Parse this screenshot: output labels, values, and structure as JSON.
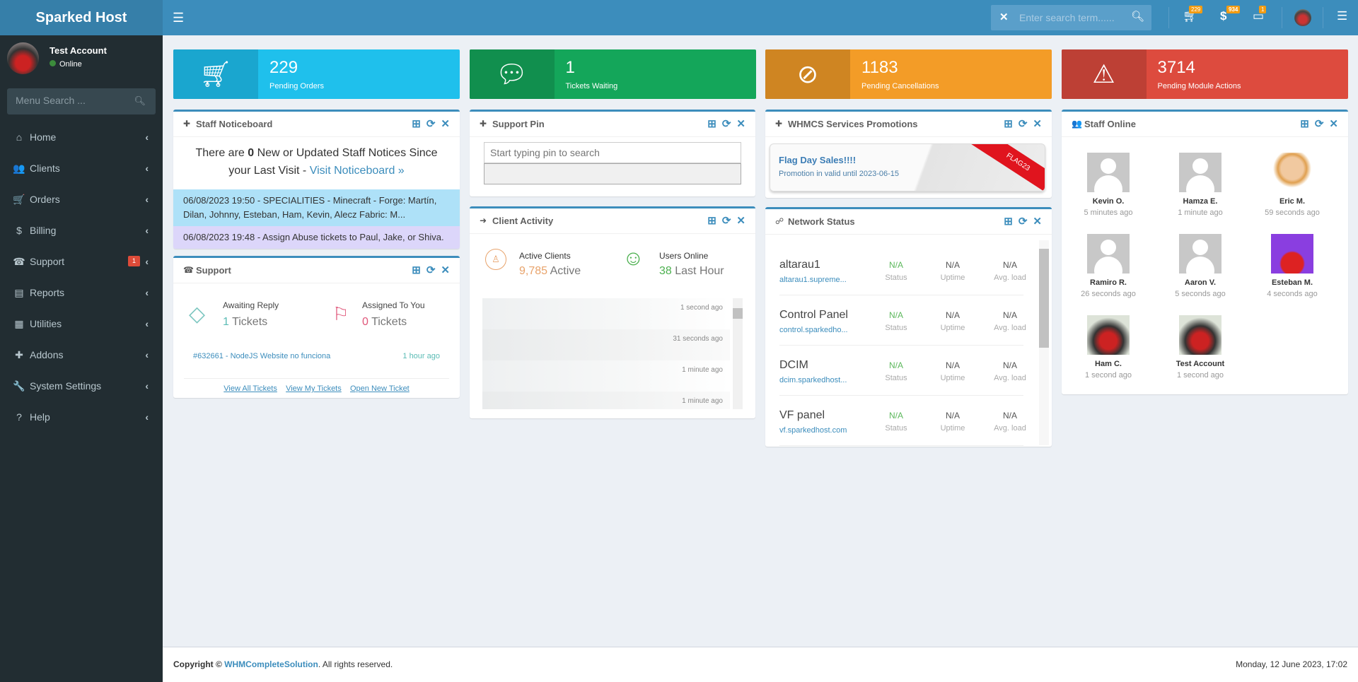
{
  "app": {
    "title": "Sparked Host"
  },
  "topbar": {
    "search_placeholder": "Enter search term......",
    "badges": {
      "orders": "229",
      "billing": "934",
      "tickets": "1"
    }
  },
  "user": {
    "name": "Test Account",
    "status": "Online"
  },
  "sidebar": {
    "search_placeholder": "Menu Search ...",
    "items": [
      {
        "label": "Home",
        "icon": "home-icon",
        "glyph": "⌂"
      },
      {
        "label": "Clients",
        "icon": "users-icon",
        "glyph": "👥"
      },
      {
        "label": "Orders",
        "icon": "cart-icon",
        "glyph": "🛒"
      },
      {
        "label": "Billing",
        "icon": "dollar-icon",
        "glyph": "$"
      },
      {
        "label": "Support",
        "icon": "support-icon",
        "glyph": "☎",
        "badge": "1"
      },
      {
        "label": "Reports",
        "icon": "file-icon",
        "glyph": "▤"
      },
      {
        "label": "Utilities",
        "icon": "grid-icon",
        "glyph": "▦"
      },
      {
        "label": "Addons",
        "icon": "puzzle-icon",
        "glyph": "✚"
      },
      {
        "label": "System Settings",
        "icon": "wrench-icon",
        "glyph": "🔧"
      },
      {
        "label": "Help",
        "icon": "help-icon",
        "glyph": "?"
      }
    ]
  },
  "stats": [
    {
      "value": "229",
      "label": "Pending Orders",
      "color": "#1fc0ec",
      "dark": "#1aa6cf",
      "icon": "cart-icon"
    },
    {
      "value": "1",
      "label": "Tickets Waiting",
      "color": "#14a65a",
      "dark": "#118f4e",
      "icon": "comment-icon"
    },
    {
      "value": "1183",
      "label": "Pending Cancellations",
      "color": "#f39c27",
      "dark": "#cf8522",
      "icon": "ban-icon"
    },
    {
      "value": "3714",
      "label": "Pending Module Actions",
      "color": "#dd4b3e",
      "dark": "#bd4035",
      "icon": "warning-icon"
    }
  ],
  "noticeboard": {
    "title": "Staff Noticeboard",
    "pre": "There are ",
    "count": "0",
    "post": " New or Updated Staff Notices Since your Last Visit - ",
    "link": "Visit Noticeboard »",
    "items": [
      "06/08/2023 19:50 - SPECIALITIES - Minecraft - Forge: Martín, Dilan, Johnny, Esteban, Ham, Kevin, Alecz Fabric: M...",
      "06/08/2023 19:48 - Assign Abuse tickets to Paul, Jake, or Shiva."
    ]
  },
  "support": {
    "title": "Support",
    "awaiting_label": "Awaiting Reply",
    "awaiting_value": "1",
    "assigned_label": "Assigned To You",
    "assigned_value": "0",
    "tickets_word": "Tickets",
    "ticket": {
      "text": "#632661 - NodeJS Website no funciona",
      "time": "1 hour ago"
    },
    "links": [
      "View All Tickets",
      "View My Tickets",
      "Open New Ticket"
    ]
  },
  "support_pin": {
    "title": "Support Pin",
    "placeholder": "Start typing pin to search"
  },
  "client_activity": {
    "title": "Client Activity",
    "active_label": "Active Clients",
    "active_value": "9,785",
    "active_word": "Active",
    "online_label": "Users Online",
    "online_value": "38",
    "online_word": "Last Hour",
    "times": [
      "1 second ago",
      "31 seconds ago",
      "1 minute ago",
      "1 minute ago"
    ]
  },
  "promotions": {
    "title": "WHMCS Services Promotions",
    "promo_title": "Flag Day Sales!!!!",
    "promo_text": "Promotion in valid until 2023-06-15",
    "code": "FLAG23"
  },
  "network": {
    "title": "Network Status",
    "col_labels": [
      "Status",
      "Uptime",
      "Avg. load"
    ],
    "rows": [
      {
        "name": "altarau1",
        "host": "altarau1.supreme...",
        "status": "N/A",
        "uptime": "N/A",
        "load": "N/A"
      },
      {
        "name": "Control Panel",
        "host": "control.sparkedho...",
        "status": "N/A",
        "uptime": "N/A",
        "load": "N/A"
      },
      {
        "name": "DCIM",
        "host": "dcim.sparkedhost...",
        "status": "N/A",
        "uptime": "N/A",
        "load": "N/A"
      },
      {
        "name": "VF panel",
        "host": "vf.sparkedhost.com",
        "status": "N/A",
        "uptime": "N/A",
        "load": "N/A"
      }
    ]
  },
  "staff_online": {
    "title": "Staff Online",
    "staff": [
      {
        "name": "Kevin O.",
        "time": "5 minutes ago",
        "avatar": "default"
      },
      {
        "name": "Hamza E.",
        "time": "1 minute ago",
        "avatar": "default"
      },
      {
        "name": "Eric M.",
        "time": "59 seconds ago",
        "avatar": "cartoon"
      },
      {
        "name": "Ramiro R.",
        "time": "26 seconds ago",
        "avatar": "default"
      },
      {
        "name": "Aaron V.",
        "time": "5 seconds ago",
        "avatar": "default"
      },
      {
        "name": "Esteban M.",
        "time": "4 seconds ago",
        "avatar": "purple"
      },
      {
        "name": "Ham C.",
        "time": "1 second ago",
        "avatar": "photo"
      },
      {
        "name": "Test Account",
        "time": "1 second ago",
        "avatar": "photo"
      }
    ]
  },
  "footer": {
    "copyright": "Copyright © ",
    "company": "WHMCompleteSolution",
    "rights": ". All rights reserved.",
    "datetime": "Monday, 12 June 2023, 17:02"
  }
}
